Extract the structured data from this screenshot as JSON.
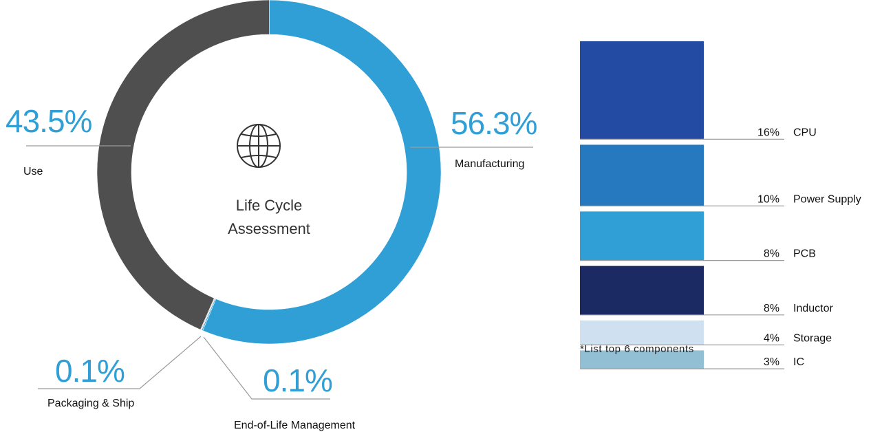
{
  "chart_data": [
    {
      "type": "pie",
      "center_title": [
        "Life Cycle",
        "Assessment"
      ],
      "center_icon": "globe-icon",
      "slices": [
        {
          "label": "Manufacturing",
          "value": 56.3,
          "display": "56.3%",
          "color": "#2f9fd6"
        },
        {
          "label": "End-of-Life Management",
          "value": 0.1,
          "display": "0.1%",
          "color": "#2f9fd6"
        },
        {
          "label": "Packaging & Ship",
          "value": 0.1,
          "display": "0.1%",
          "color": "#d9d9d9"
        },
        {
          "label": "Use",
          "value": 43.5,
          "display": "43.5%",
          "color": "#4f4f4f"
        }
      ],
      "accent_color": "#2f9fd6"
    },
    {
      "type": "bar",
      "orientation": "stacked-vertical",
      "categories": [
        "CPU",
        "Power Supply",
        "PCB",
        "Inductor",
        "Storage",
        "IC"
      ],
      "values": [
        16,
        10,
        8,
        8,
        4,
        3
      ],
      "display": [
        "16%",
        "10%",
        "8%",
        "8%",
        "4%",
        "3%"
      ],
      "colors": [
        "#234ba3",
        "#2678bf",
        "#2f9fd6",
        "#1b2a63",
        "#cfe1f1",
        "#93bfd5"
      ],
      "footnote": "*List top 6 components"
    }
  ]
}
